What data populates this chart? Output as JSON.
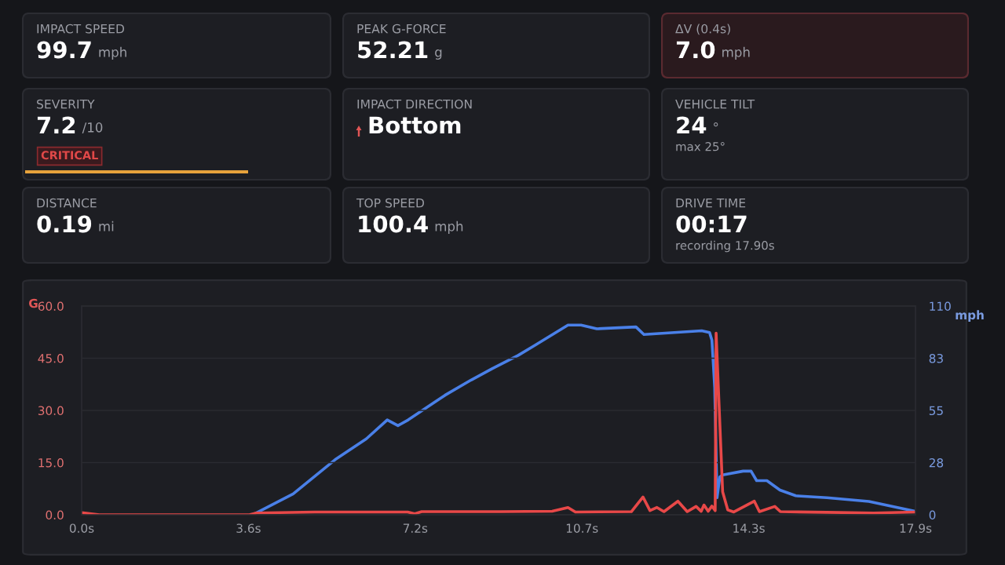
{
  "chart_data": [
    {
      "type": "other",
      "title": "IMPACT SPEED",
      "annotations": [
        "99.7",
        "mph"
      ]
    },
    {
      "type": "other",
      "title": "PEAK G-FORCE",
      "annotations": [
        "52.21",
        "g"
      ]
    },
    {
      "type": "other",
      "title": "ΔV (0.4s)",
      "annotations": [
        "7.0",
        "mph"
      ]
    },
    {
      "type": "other",
      "title": "SEVERITY",
      "annotations": [
        "7.2",
        "/10",
        "CRITICAL"
      ]
    },
    {
      "type": "other",
      "title": "IMPACT DIRECTION",
      "annotations": [
        "Bottom"
      ]
    },
    {
      "type": "other",
      "title": "VEHICLE TILT",
      "annotations": [
        "24",
        "°",
        "max 25°"
      ]
    },
    {
      "type": "other",
      "title": "DISTANCE",
      "annotations": [
        "0.19",
        "mi"
      ]
    },
    {
      "type": "other",
      "title": "TOP SPEED",
      "annotations": [
        "100.4",
        "mph"
      ]
    },
    {
      "type": "other",
      "title": "DRIVE TIME",
      "annotations": [
        "00:17",
        "recording 17.90s"
      ]
    },
    {
      "type": "line",
      "ylabel": "G",
      "y2label": "mph",
      "grid": "y",
      "xlim": [
        0,
        17.9
      ],
      "xticks": [
        {
          "value": 0,
          "label": "0.0s"
        },
        {
          "value": 3.58,
          "label": "3.6s"
        },
        {
          "value": 7.16,
          "label": "7.2s"
        },
        {
          "value": 10.74,
          "label": "10.7s"
        },
        {
          "value": 14.32,
          "label": "14.3s"
        },
        {
          "value": 17.9,
          "label": "17.9s"
        }
      ],
      "ylim": [
        0,
        60
      ],
      "yticks": [
        {
          "value": 0,
          "label": "0.0"
        },
        {
          "value": 15,
          "label": "15.0"
        },
        {
          "value": 30,
          "label": "30.0"
        },
        {
          "value": 45,
          "label": "45.0"
        },
        {
          "value": 60,
          "label": "60.0"
        }
      ],
      "y2lim": [
        0,
        110
      ],
      "y2ticks": [
        0,
        {
          "value": 27.5,
          "label": "28"
        },
        55,
        {
          "value": 82.5,
          "label": "83"
        },
        110
      ],
      "series": [
        {
          "color": "#4a80e8",
          "axis": "y2",
          "x": [
            3.75,
            4.54,
            5.44,
            6.11,
            6.56,
            6.79,
            7.01,
            7.8,
            8.36,
            8.81,
            9.37,
            9.71,
            10.44,
            10.72,
            11.06,
            11.9,
            12.07,
            13.31,
            13.48,
            13.53,
            13.59,
            13.64,
            13.7,
            13.76,
            14.2,
            14.37,
            14.49,
            14.71,
            14.99,
            15.33,
            16.0,
            16.9,
            17.86
          ],
          "values": [
            1,
            11,
            29,
            40,
            50,
            47,
            50,
            63,
            71,
            77,
            84,
            89,
            100,
            100,
            98,
            99,
            95,
            97,
            96,
            92,
            67,
            9,
            20,
            21,
            23,
            23,
            18,
            18,
            13,
            10,
            9,
            7,
            2
          ]
        },
        {
          "color": "#e84848",
          "axis": "y",
          "x": [
            0,
            0.38,
            3.6,
            3.75,
            5,
            7.0,
            7.15,
            7.3,
            9,
            10.1,
            10.44,
            10.6,
            11.8,
            12.05,
            12.2,
            12.35,
            12.5,
            12.8,
            13.0,
            13.19,
            13.3,
            13.36,
            13.45,
            13.53,
            13.6,
            13.62,
            13.76,
            13.87,
            14.0,
            14.44,
            14.55,
            14.88,
            15.0,
            16,
            17.0,
            17.9
          ],
          "values": [
            0.6,
            0,
            0,
            0.5,
            0.8,
            0.8,
            0.3,
            0.9,
            0.9,
            1.0,
            2.1,
            0.8,
            0.9,
            5.1,
            1.2,
            2.1,
            0.9,
            3.9,
            0.9,
            2.4,
            1.0,
            2.8,
            1.0,
            2.5,
            1.2,
            52.2,
            6.6,
            1.4,
            0.8,
            3.9,
            0.9,
            2.4,
            0.9,
            0.7,
            0.5,
            0.8
          ]
        }
      ]
    }
  ]
}
